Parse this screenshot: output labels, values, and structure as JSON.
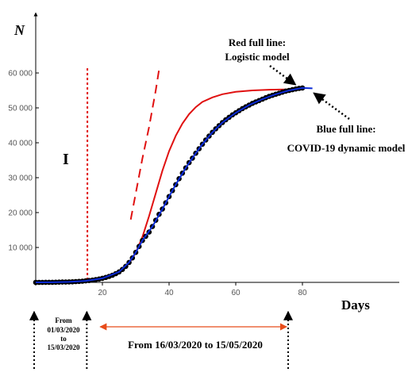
{
  "chart_data": {
    "type": "scatter",
    "ylabel": "N",
    "xlabel": "Days",
    "xlim": [
      0,
      90
    ],
    "ylim": [
      0,
      65000
    ],
    "x_ticks": [
      20,
      40,
      60,
      80
    ],
    "x_tick_labels": [
      "20",
      "40",
      "60",
      "80"
    ],
    "y_ticks": [
      10000,
      20000,
      30000,
      40000,
      50000,
      60000
    ],
    "y_tick_labels": [
      "10 000",
      "20 000",
      "30 000",
      "40 000",
      "50 000",
      "60 000"
    ],
    "grid": false,
    "region_label": "I",
    "phase_boundary_day": 15.5,
    "series": [
      {
        "role": "observed",
        "color": "#000000",
        "points": [
          [
            0,
            5
          ],
          [
            1,
            7
          ],
          [
            2,
            10
          ],
          [
            3,
            15
          ],
          [
            4,
            20
          ],
          [
            5,
            30
          ],
          [
            6,
            45
          ],
          [
            7,
            60
          ],
          [
            8,
            80
          ],
          [
            9,
            100
          ],
          [
            10,
            130
          ],
          [
            11,
            170
          ],
          [
            12,
            220
          ],
          [
            13,
            280
          ],
          [
            14,
            350
          ],
          [
            15,
            430
          ],
          [
            16,
            520
          ],
          [
            17,
            630
          ],
          [
            18,
            780
          ],
          [
            19,
            950
          ],
          [
            20,
            1150
          ],
          [
            21,
            1400
          ],
          [
            22,
            1700
          ],
          [
            23,
            2050
          ],
          [
            24,
            2500
          ],
          [
            25,
            3000
          ],
          [
            26,
            3700
          ],
          [
            27,
            4600
          ],
          [
            28,
            5700
          ],
          [
            29,
            7000
          ],
          [
            30,
            8600
          ],
          [
            31,
            10300
          ],
          [
            32,
            12000
          ],
          [
            33,
            13200
          ],
          [
            34,
            14400
          ],
          [
            35,
            16000
          ],
          [
            36,
            17800
          ],
          [
            37,
            19500
          ],
          [
            38,
            21000
          ],
          [
            39,
            22800
          ],
          [
            40,
            24600
          ],
          [
            41,
            26300
          ],
          [
            42,
            28000
          ],
          [
            43,
            29700
          ],
          [
            44,
            31300
          ],
          [
            45,
            32800
          ],
          [
            46,
            34300
          ],
          [
            47,
            35600
          ],
          [
            48,
            37000
          ],
          [
            49,
            38300
          ],
          [
            50,
            39600
          ],
          [
            51,
            40800
          ],
          [
            52,
            41900
          ],
          [
            53,
            43000
          ],
          [
            54,
            44000
          ],
          [
            55,
            44900
          ],
          [
            56,
            45800
          ],
          [
            57,
            46600
          ],
          [
            58,
            47300
          ],
          [
            59,
            48000
          ],
          [
            60,
            48600
          ],
          [
            61,
            49200
          ],
          [
            62,
            49800
          ],
          [
            63,
            50300
          ],
          [
            64,
            50800
          ],
          [
            65,
            51300
          ],
          [
            66,
            51700
          ],
          [
            67,
            52100
          ],
          [
            68,
            52500
          ],
          [
            69,
            52900
          ],
          [
            70,
            53300
          ],
          [
            71,
            53600
          ],
          [
            72,
            53900
          ],
          [
            73,
            54200
          ],
          [
            74,
            54500
          ],
          [
            75,
            54800
          ],
          [
            76,
            55000
          ],
          [
            77,
            55200
          ],
          [
            78,
            55400
          ],
          [
            79,
            55600
          ],
          [
            80,
            55700
          ]
        ]
      },
      {
        "name": "COVID-19 dynamic model",
        "color": "#0a2ad6",
        "points": [
          [
            0,
            5
          ],
          [
            5,
            30
          ],
          [
            10,
            130
          ],
          [
            15,
            430
          ],
          [
            20,
            1150
          ],
          [
            25,
            3000
          ],
          [
            28,
            5700
          ],
          [
            30,
            8600
          ],
          [
            32,
            12000
          ],
          [
            35,
            16000
          ],
          [
            38,
            21000
          ],
          [
            40,
            24600
          ],
          [
            42,
            28000
          ],
          [
            45,
            32800
          ],
          [
            48,
            37000
          ],
          [
            50,
            39600
          ],
          [
            53,
            43000
          ],
          [
            56,
            45800
          ],
          [
            60,
            48600
          ],
          [
            64,
            50800
          ],
          [
            68,
            52500
          ],
          [
            72,
            53900
          ],
          [
            76,
            55000
          ],
          [
            80,
            55700
          ],
          [
            83,
            55600
          ]
        ]
      },
      {
        "name": "Logistic model",
        "color": "#e01010",
        "points": [
          [
            0,
            40
          ],
          [
            5,
            80
          ],
          [
            10,
            180
          ],
          [
            15,
            450
          ],
          [
            20,
            1100
          ],
          [
            25,
            2800
          ],
          [
            28,
            5500
          ],
          [
            30,
            8500
          ],
          [
            32,
            13000
          ],
          [
            34,
            19000
          ],
          [
            36,
            25500
          ],
          [
            38,
            32000
          ],
          [
            40,
            37600
          ],
          [
            42,
            42000
          ],
          [
            44,
            45500
          ],
          [
            46,
            48200
          ],
          [
            48,
            50200
          ],
          [
            50,
            51700
          ],
          [
            53,
            53000
          ],
          [
            56,
            53900
          ],
          [
            60,
            54600
          ],
          [
            65,
            55000
          ],
          [
            70,
            55200
          ],
          [
            75,
            55300
          ],
          [
            80,
            55300
          ]
        ]
      },
      {
        "role": "early-phase fit",
        "color": "#e01010",
        "style": "dashed",
        "points": [
          [
            28.5,
            18000
          ],
          [
            30,
            25500
          ],
          [
            32,
            35500
          ],
          [
            34,
            44500
          ],
          [
            36,
            55000
          ],
          [
            37,
            61000
          ]
        ]
      }
    ],
    "annotations": [
      {
        "lines": [
          "Red full line:",
          "Logistic model"
        ],
        "arrow_to": [
          76,
          55300
        ]
      },
      {
        "lines": [
          "Blue full line:",
          "COVID-19 dynamic model"
        ],
        "arrow_to": [
          82,
          55600
        ]
      }
    ],
    "periods": [
      {
        "lines": [
          "From",
          "01/03/2020",
          "to",
          "15/03/2020"
        ],
        "from_day": 0,
        "to_day": 15.5
      },
      {
        "lines": [
          "From 16/03/2020 to 15/05/2020"
        ],
        "from_day": 16,
        "to_day": 76
      }
    ]
  }
}
